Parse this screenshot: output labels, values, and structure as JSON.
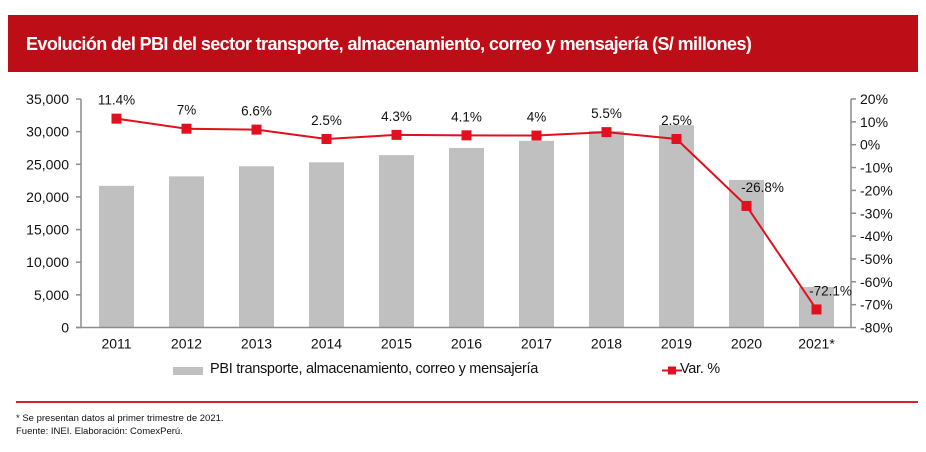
{
  "header": {
    "title": "Evolución del PBI del sector transporte, almacenamiento, correo y mensajería (S/ millones)"
  },
  "chart_data": {
    "type": "bar",
    "title": "Evolución del PBI del sector transporte, almacenamiento, correo y mensajería (S/ millones)",
    "categories": [
      "2011",
      "2012",
      "2013",
      "2014",
      "2015",
      "2016",
      "2017",
      "2018",
      "2019",
      "2020",
      "2021*"
    ],
    "series": [
      {
        "name": "PBI transporte, almacenamiento, correo y mensajería",
        "type": "bar",
        "axis": "left",
        "color": "#c0c0c0",
        "values": [
          21700,
          23150,
          24700,
          25300,
          26400,
          27500,
          28600,
          30100,
          31000,
          22600,
          6200
        ]
      },
      {
        "name": "Var. %",
        "type": "line",
        "axis": "right",
        "color": "#e0101f",
        "values": [
          11.4,
          7,
          6.6,
          2.5,
          4.3,
          4.1,
          4,
          5.5,
          2.5,
          -26.8,
          -72.1
        ],
        "labels": [
          "11.4%",
          "7%",
          "6.6%",
          "2.5%",
          "4.3%",
          "4.1%",
          "4%",
          "5.5%",
          "2.5%",
          "-26.8%",
          "-72.1%"
        ]
      }
    ],
    "y_left": {
      "ylim": [
        0,
        35000
      ],
      "ticks": [
        0,
        5000,
        10000,
        15000,
        20000,
        25000,
        30000,
        35000
      ],
      "tick_labels": [
        "0",
        "5,000",
        "10,000",
        "15,000",
        "20,000",
        "25,000",
        "30,000",
        "35,000"
      ]
    },
    "y_right": {
      "ylim": [
        -80,
        20
      ],
      "ticks": [
        -80,
        -70,
        -60,
        -50,
        -40,
        -30,
        -20,
        -10,
        0,
        10,
        20
      ],
      "tick_labels": [
        "-80%",
        "-70%",
        "-60%",
        "-50%",
        "-40%",
        "-30%",
        "-20%",
        "-10%",
        "0%",
        "10%",
        "20%"
      ]
    },
    "xlabel": "",
    "ylabel": "",
    "grid": false,
    "legend_position": "bottom"
  },
  "legend": {
    "bar_label": "PBI transporte, almacenamiento, correo y mensajería",
    "line_label": "Var. %"
  },
  "footnotes": {
    "note": "* Se presentan datos al primer trimestre de 2021.",
    "source": "Fuente: INEI. Elaboración: ComexPerú."
  }
}
